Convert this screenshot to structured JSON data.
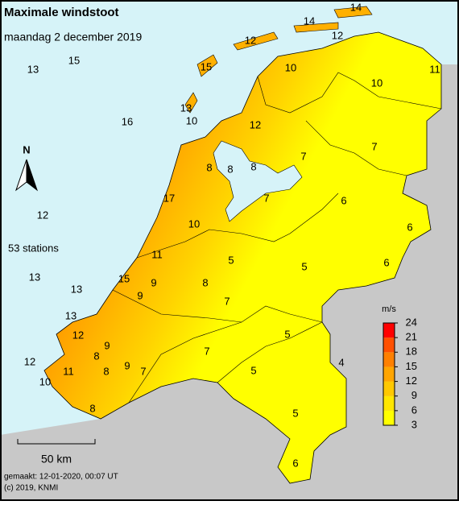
{
  "header": {
    "title": "Maximale windstoot",
    "subtitle": "maandag 2 december 2019"
  },
  "north": "N",
  "station_count": "53 stations",
  "scale_bar": "50 km",
  "footer": {
    "made": "gemaakt: 12-01-2020, 00:07 UT",
    "copyright": "(c) 2019, KNMI"
  },
  "legend": {
    "unit": "m/s",
    "ticks": [
      3,
      6,
      9,
      12,
      15,
      18,
      21,
      24
    ],
    "colors": [
      "#ffff00",
      "#ffe600",
      "#ffc800",
      "#ffa500",
      "#ff8000",
      "#ff5000",
      "#ff0000"
    ]
  },
  "stations": [
    14,
    14,
    12,
    12,
    13,
    15,
    10,
    11,
    15,
    10,
    13,
    10,
    16,
    12,
    7,
    7,
    8,
    8,
    8,
    17,
    7,
    6,
    12,
    10,
    6,
    11,
    5,
    5,
    6,
    13,
    15,
    9,
    8,
    13,
    9,
    7,
    13,
    12,
    5,
    9,
    7,
    8,
    9,
    4,
    12,
    11,
    8,
    7,
    10,
    5,
    8,
    5,
    6
  ]
}
